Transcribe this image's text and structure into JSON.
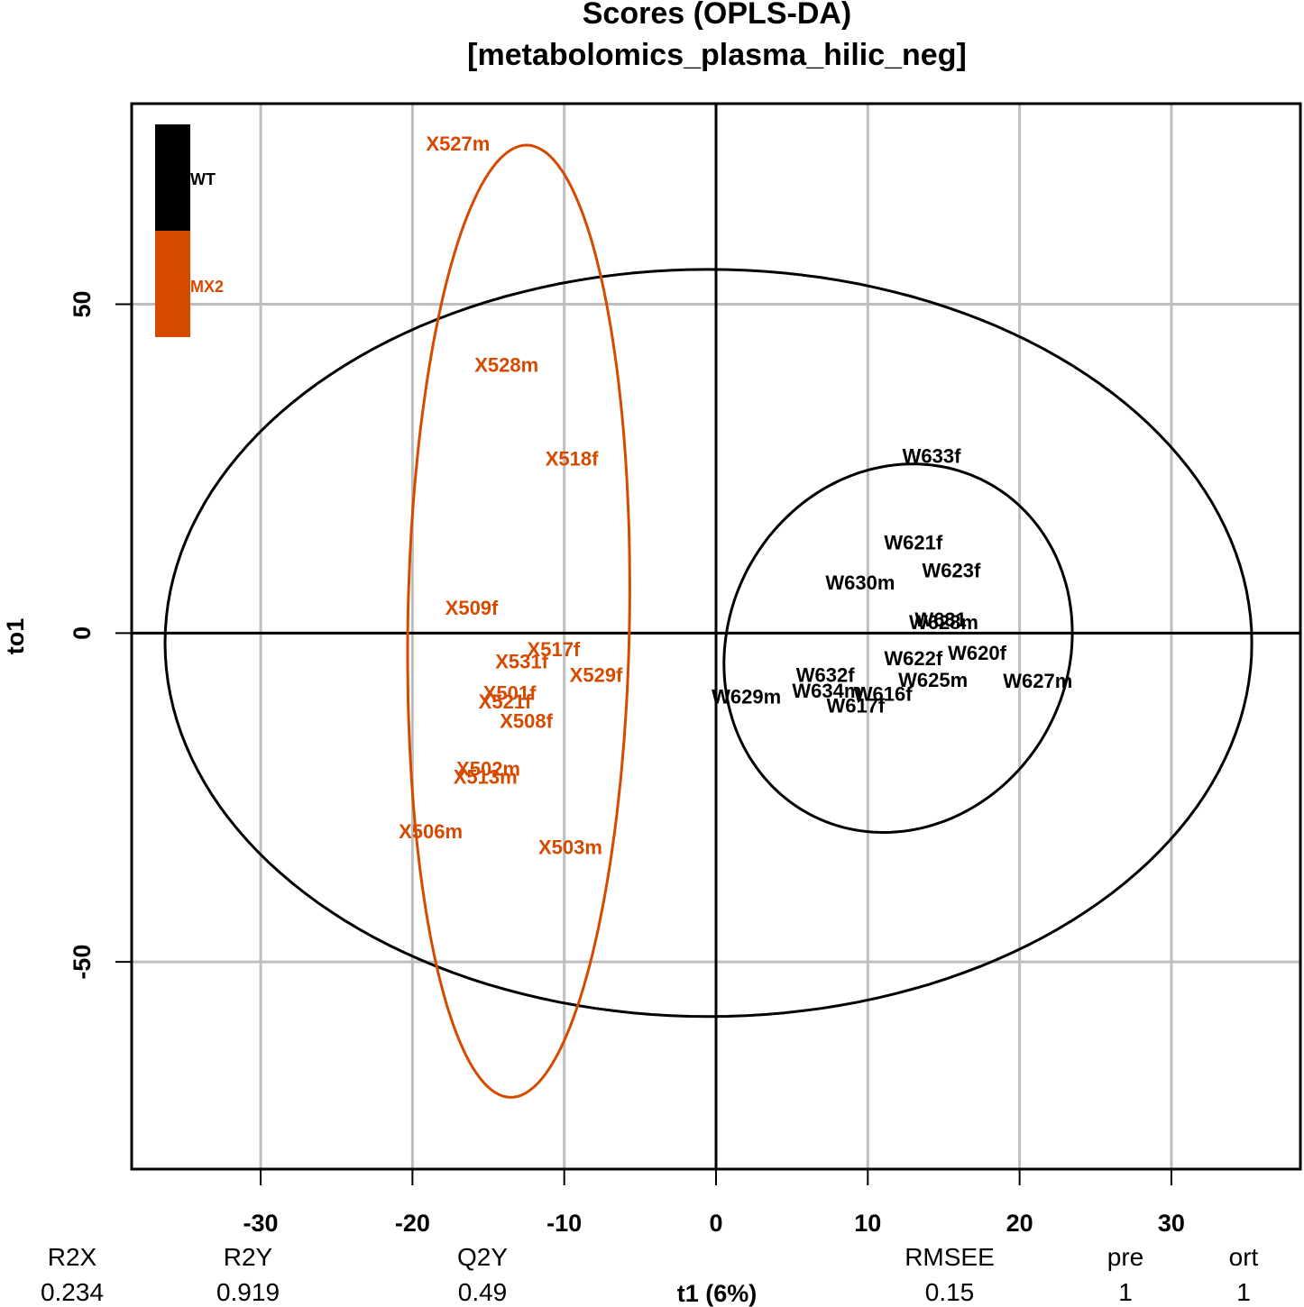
{
  "chart_data": {
    "type": "scatter",
    "title": [
      "Scores (OPLS-DA)",
      "[metabolomics_plasma_hilic_neg]"
    ],
    "xlabel": "t1 (6%)",
    "ylabel": "to1",
    "xlim": [
      -38.5,
      38.5
    ],
    "ylim": [
      -81.5,
      80.5
    ],
    "xticks": [
      -30,
      -20,
      -10,
      0,
      10,
      20,
      30
    ],
    "yticks": [
      -50,
      0,
      50
    ],
    "grid": true,
    "legend_position": "top-left",
    "colors": {
      "WT": "#000000",
      "MX2": "#d64a00"
    },
    "series": [
      {
        "name": "WT",
        "color": "#000000",
        "points": [
          {
            "label": "W633f",
            "x": 14.2,
            "y": 27.0
          },
          {
            "label": "W621f",
            "x": 13.0,
            "y": 13.8
          },
          {
            "label": "W623f",
            "x": 15.5,
            "y": 9.6
          },
          {
            "label": "W630m",
            "x": 9.5,
            "y": 7.7
          },
          {
            "label": "W628m",
            "x": 15.0,
            "y": 1.7
          },
          {
            "label": "W631",
            "x": 14.8,
            "y": 2.1
          },
          {
            "label": "W620f",
            "x": 17.2,
            "y": -3.0
          },
          {
            "label": "W622f",
            "x": 13.0,
            "y": -3.8
          },
          {
            "label": "W625m",
            "x": 14.3,
            "y": -7.1
          },
          {
            "label": "W627m",
            "x": 21.2,
            "y": -7.2
          },
          {
            "label": "W632f",
            "x": 7.2,
            "y": -6.3
          },
          {
            "label": "W634m",
            "x": 7.3,
            "y": -8.7
          },
          {
            "label": "W616f",
            "x": 11.0,
            "y": -9.2
          },
          {
            "label": "W617f",
            "x": 9.2,
            "y": -11.0
          },
          {
            "label": "W629m",
            "x": 2.0,
            "y": -9.6
          }
        ]
      },
      {
        "name": "MX2",
        "color": "#d64a00",
        "points": [
          {
            "label": "X527m",
            "x": -17.0,
            "y": 74.5
          },
          {
            "label": "X528m",
            "x": -13.8,
            "y": 40.8
          },
          {
            "label": "X518f",
            "x": -9.5,
            "y": 26.6
          },
          {
            "label": "X509f",
            "x": -16.1,
            "y": 3.9
          },
          {
            "label": "X517f",
            "x": -10.7,
            "y": -2.4
          },
          {
            "label": "X531f",
            "x": -12.8,
            "y": -4.3
          },
          {
            "label": "X529f",
            "x": -7.9,
            "y": -6.3
          },
          {
            "label": "X501f",
            "x": -13.6,
            "y": -9.1
          },
          {
            "label": "X521f",
            "x": -13.9,
            "y": -10.4
          },
          {
            "label": "X508f",
            "x": -12.5,
            "y": -13.3
          },
          {
            "label": "X502m",
            "x": -15.0,
            "y": -20.6
          },
          {
            "label": "X513m",
            "x": -15.2,
            "y": -21.8
          },
          {
            "label": "X506m",
            "x": -18.8,
            "y": -30.1
          },
          {
            "label": "X503m",
            "x": -9.6,
            "y": -32.5
          }
        ]
      }
    ],
    "ellipses": [
      {
        "group": "all",
        "color": "#000000",
        "cx": -0.5,
        "cy": -1.5,
        "rx": 35.8,
        "ry": 56.8,
        "angle": 0
      },
      {
        "group": "WT",
        "color": "#000000",
        "cx": 12.0,
        "cy": -2.3,
        "rx": 11.2,
        "ry": 28.6,
        "angle": 28
      },
      {
        "group": "MX2",
        "color": "#d64a00",
        "cx": -13.0,
        "cy": 1.8,
        "rx": 7.3,
        "ry": 72.4,
        "angle": 1
      }
    ],
    "metrics": {
      "headers": [
        "R2X",
        "R2Y",
        "Q2Y",
        "RMSEE",
        "pre",
        "ort"
      ],
      "values": [
        "0.234",
        "0.919",
        "0.49",
        "0.15",
        "1",
        "1"
      ]
    }
  }
}
